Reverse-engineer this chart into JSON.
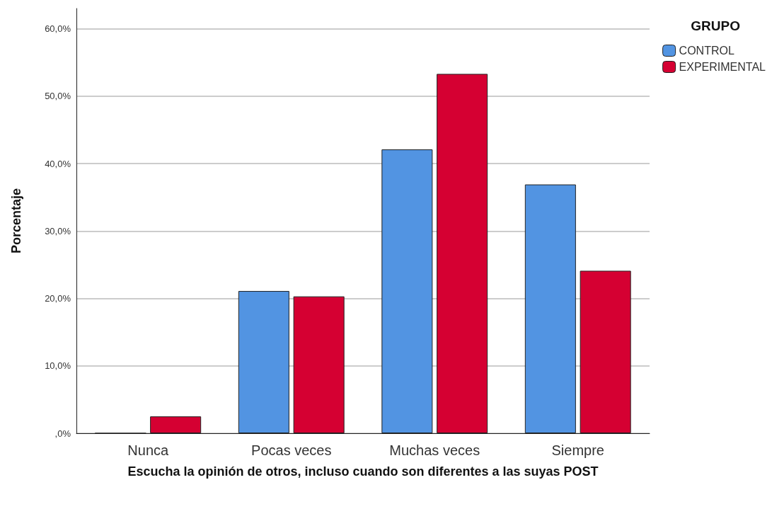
{
  "chart_data": {
    "type": "bar",
    "xlabel": "Escucha la opinión de otros, incluso cuando son diferentes a las suyas POST",
    "ylabel": "Porcentaje",
    "legend_title": "GRUPO",
    "categories": [
      "Nunca",
      "Pocas veces",
      "Muchas veces",
      "Siempre"
    ],
    "series": [
      {
        "name": "CONTROL",
        "color": "#5294e2",
        "values": [
          0,
          21.1,
          42.1,
          36.9
        ]
      },
      {
        "name": "EXPERIMENTAL",
        "color": "#d50032",
        "values": [
          2.5,
          20.3,
          53.3,
          24.1
        ]
      }
    ],
    "ylim": [
      0,
      63
    ],
    "yticks": [
      {
        "value": 0,
        "label": ",0%"
      },
      {
        "value": 10,
        "label": "10,0%"
      },
      {
        "value": 20,
        "label": "20,0%"
      },
      {
        "value": 30,
        "label": "30,0%"
      },
      {
        "value": 40,
        "label": "40,0%"
      },
      {
        "value": 50,
        "label": "50,0%"
      },
      {
        "value": 60,
        "label": "60,0%"
      }
    ],
    "grid": "y",
    "legend": "top right"
  }
}
